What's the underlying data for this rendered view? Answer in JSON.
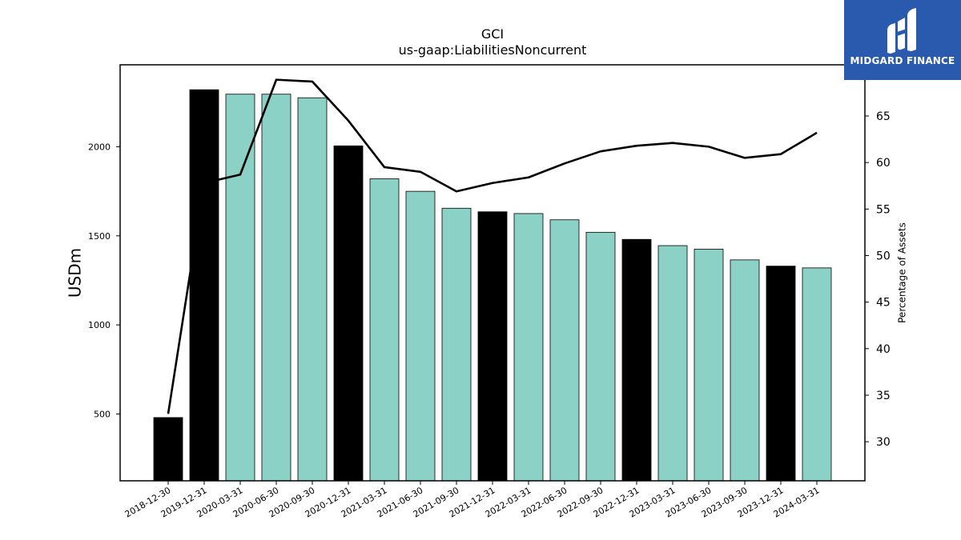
{
  "brand": {
    "name": "MIDGARD FINANCE",
    "bg_color": "#2a5aad"
  },
  "chart_data": {
    "type": "bar",
    "title": "GCI",
    "subtitle": "us-gaap:LiabilitiesNoncurrent",
    "ylabel": "USDm",
    "y2label": "Percentage of Assets",
    "ylim": [
      125,
      2460
    ],
    "y2lim": [
      25.8,
      70.5
    ],
    "yticks": [
      500,
      1000,
      1500,
      2000
    ],
    "y2ticks": [
      30,
      35,
      40,
      45,
      50,
      55,
      60,
      65
    ],
    "categories": [
      "2018-12-30",
      "2019-12-31",
      "2020-03-31",
      "2020-06-30",
      "2020-09-30",
      "2020-12-31",
      "2021-03-31",
      "2021-06-30",
      "2021-09-30",
      "2021-12-31",
      "2022-03-31",
      "2022-06-30",
      "2022-09-30",
      "2022-12-31",
      "2023-03-31",
      "2023-06-30",
      "2023-09-30",
      "2023-12-31",
      "2024-03-31"
    ],
    "series": [
      {
        "type": "bar",
        "axis": "left",
        "values": [
          480,
          2320,
          2295,
          2295,
          2275,
          2005,
          1820,
          1750,
          1655,
          1635,
          1625,
          1590,
          1520,
          1480,
          1445,
          1425,
          1365,
          1330,
          1320
        ]
      },
      {
        "type": "line",
        "axis": "right",
        "values": [
          33.0,
          57.8,
          58.7,
          68.9,
          68.7,
          64.5,
          59.5,
          59.0,
          56.9,
          57.8,
          58.4,
          59.9,
          61.2,
          61.8,
          62.1,
          61.7,
          60.5,
          60.9,
          63.2
        ]
      }
    ],
    "bar_colors": {
      "annual": "#000000",
      "quarterly": "#8cd1c5"
    },
    "annual_flags": [
      true,
      true,
      false,
      false,
      false,
      true,
      false,
      false,
      false,
      true,
      false,
      false,
      false,
      true,
      false,
      false,
      false,
      true,
      false
    ],
    "line_color": "#000000",
    "grid": false
  }
}
